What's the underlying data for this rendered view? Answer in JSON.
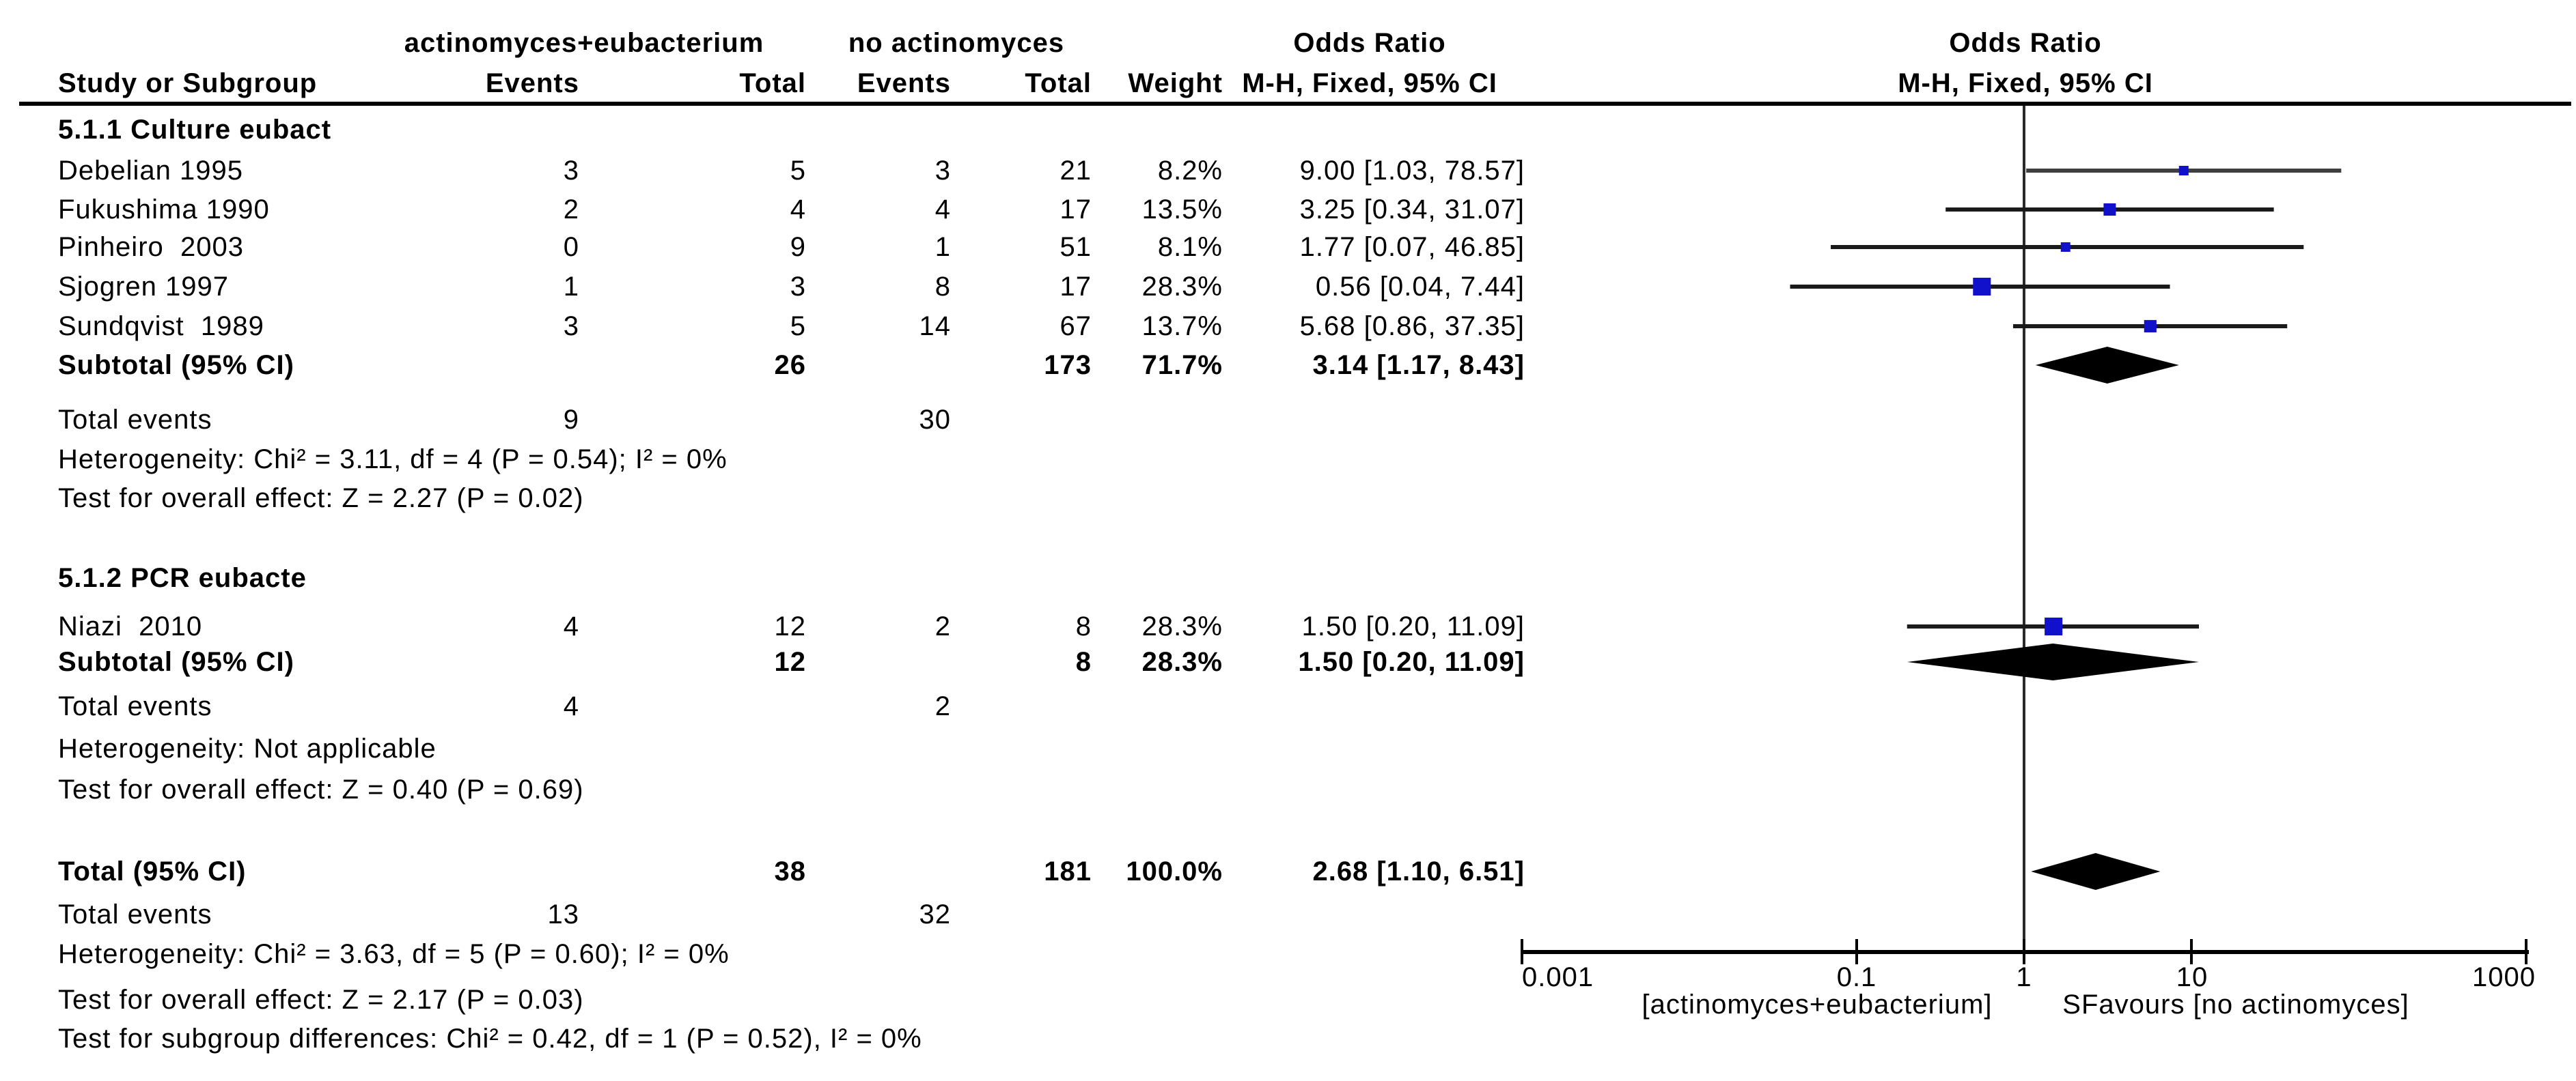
{
  "page": {
    "background": "#ffffff",
    "text_color": "#000000"
  },
  "headers": {
    "group1": "actinomyces+eubacterium",
    "group2": "no actinomyces",
    "or_col_title": "Odds Ratio",
    "or_col_sub": "M-H, Fixed, 95% CI",
    "plot_title": "Odds Ratio",
    "plot_sub": "M-H, Fixed, 95% CI",
    "col_study": "Study or Subgroup",
    "col_events1": "Events",
    "col_total1": "Total",
    "col_events2": "Events",
    "col_total2": "Total",
    "col_weight": "Weight"
  },
  "chart_data": {
    "type": "forest",
    "effect_measure": "Odds Ratio",
    "method": "M-H, Fixed, 95% CI",
    "x_scale": "log10",
    "x_ticks": [
      "0.001",
      "0.1",
      "1",
      "10",
      "1000"
    ],
    "x_tick_values": [
      0.001,
      0.1,
      1,
      10,
      1000
    ],
    "xlim": [
      0.001,
      1000
    ],
    "favours_left": "[actinomyces+eubacterium]",
    "favours_right": "SFavours [no actinomyces]",
    "colors": {
      "square_blue": "#1111CC",
      "diamond_black": "#000000",
      "ci_line": "#1a1a1a"
    },
    "rows": [
      {
        "type": "subgroup_title",
        "label": "5.1.1 Culture eubact"
      },
      {
        "type": "study",
        "study": "Debelian 1995",
        "e1": "3",
        "t1": "5",
        "e2": "3",
        "t2": "21",
        "weight": "8.2%",
        "w": 8.2,
        "or_ci": "9.00 [1.03, 78.57]",
        "or": 9.0,
        "lo": 1.03,
        "hi": 78.57,
        "ci_color": "#3f3f3f"
      },
      {
        "type": "study",
        "study": "Fukushima 1990",
        "e1": "2",
        "t1": "4",
        "e2": "4",
        "t2": "17",
        "weight": "13.5%",
        "w": 13.5,
        "or_ci": "3.25 [0.34, 31.07]",
        "or": 3.25,
        "lo": 0.34,
        "hi": 31.07
      },
      {
        "type": "study",
        "study": "Pinheiro  2003",
        "e1": "0",
        "t1": "9",
        "e2": "1",
        "t2": "51",
        "weight": "8.1%",
        "w": 8.1,
        "or_ci": "1.77 [0.07, 46.85]",
        "or": 1.77,
        "lo": 0.07,
        "hi": 46.85
      },
      {
        "type": "study",
        "study": "Sjogren 1997",
        "e1": "1",
        "t1": "3",
        "e2": "8",
        "t2": "17",
        "weight": "28.3%",
        "w": 28.3,
        "or_ci": "0.56 [0.04, 7.44]",
        "or": 0.56,
        "lo": 0.04,
        "hi": 7.44
      },
      {
        "type": "study",
        "study": "Sundqvist  1989",
        "e1": "3",
        "t1": "5",
        "e2": "14",
        "t2": "67",
        "weight": "13.7%",
        "w": 13.7,
        "or_ci": "5.68 [0.86, 37.35]",
        "or": 5.68,
        "lo": 0.86,
        "hi": 37.35
      },
      {
        "type": "subtotal",
        "label": "Subtotal (95% CI)",
        "t1": "26",
        "t2": "173",
        "weight": "71.7%",
        "or_ci": "3.14 [1.17, 8.43]",
        "or": 3.14,
        "lo": 1.17,
        "hi": 8.43
      },
      {
        "type": "events",
        "label": "Total events",
        "e1": "9",
        "e2": "30"
      },
      {
        "type": "note",
        "label": "Heterogeneity: Chi² = 3.11, df = 4 (P = 0.54); I² = 0%"
      },
      {
        "type": "note",
        "label": "Test for overall effect: Z = 2.27 (P = 0.02)"
      },
      {
        "type": "subgroup_title",
        "label": "5.1.2 PCR eubacte"
      },
      {
        "type": "study",
        "study": "Niazi  2010",
        "e1": "4",
        "t1": "12",
        "e2": "2",
        "t2": "8",
        "weight": "28.3%",
        "w": 28.3,
        "or_ci": "1.50 [0.20, 11.09]",
        "or": 1.5,
        "lo": 0.2,
        "hi": 11.09
      },
      {
        "type": "subtotal",
        "label": "Subtotal (95% CI)",
        "t1": "12",
        "t2": "8",
        "weight": "28.3%",
        "or_ci": "1.50 [0.20, 11.09]",
        "or": 1.5,
        "lo": 0.2,
        "hi": 11.09
      },
      {
        "type": "events",
        "label": "Total events",
        "e1": "4",
        "e2": "2"
      },
      {
        "type": "note",
        "label": "Heterogeneity: Not applicable"
      },
      {
        "type": "note",
        "label": "Test for overall effect: Z = 0.40 (P = 0.69)"
      },
      {
        "type": "total",
        "label": "Total (95% CI)",
        "t1": "38",
        "t2": "181",
        "weight": "100.0%",
        "or_ci": "2.68 [1.10, 6.51]",
        "or": 2.68,
        "lo": 1.1,
        "hi": 6.51
      },
      {
        "type": "events",
        "label": "Total events",
        "e1": "13",
        "e2": "32"
      },
      {
        "type": "note",
        "label": "Heterogeneity: Chi² = 3.63, df = 5 (P = 0.60); I² = 0%"
      },
      {
        "type": "note",
        "label": "Test for overall effect: Z = 2.17 (P = 0.03)"
      },
      {
        "type": "note",
        "label": "Test for subgroup differences: Chi² = 0.42, df = 1 (P = 0.52), I² = 0%"
      }
    ]
  }
}
